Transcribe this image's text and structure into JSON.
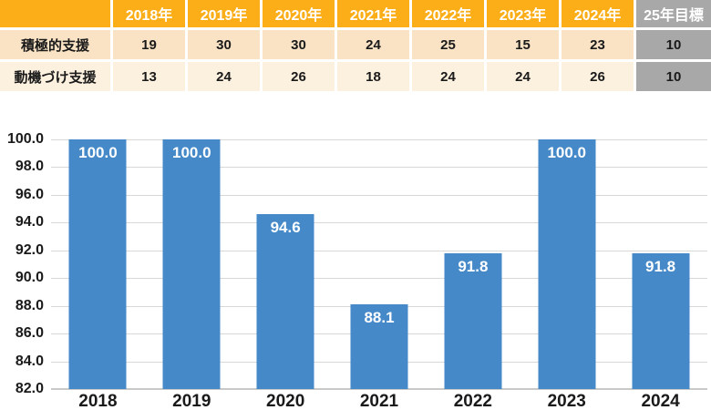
{
  "table": {
    "corner_label": "",
    "year_headers": [
      "2018年",
      "2019年",
      "2020年",
      "2021年",
      "2022年",
      "2023年",
      "2024年"
    ],
    "target_header": "25年目標",
    "rows": [
      {
        "label": "積極的支援",
        "values": [
          "19",
          "30",
          "30",
          "24",
          "25",
          "15",
          "23"
        ],
        "target": "10"
      },
      {
        "label": "動機づけ支援",
        "values": [
          "13",
          "24",
          "26",
          "18",
          "24",
          "24",
          "26"
        ],
        "target": "10"
      }
    ]
  },
  "chart_data": {
    "type": "bar",
    "categories": [
      "2018",
      "2019",
      "2020",
      "2021",
      "2022",
      "2023",
      "2024"
    ],
    "values": [
      100.0,
      100.0,
      94.6,
      88.1,
      91.8,
      100.0,
      91.8
    ],
    "data_labels": [
      "100.0",
      "100.0",
      "94.6",
      "88.1",
      "91.8",
      "100.0",
      "91.8"
    ],
    "title": "",
    "xlabel": "",
    "ylabel": "",
    "ylim": [
      82.0,
      100.0
    ],
    "ytick_step": 2.0,
    "yticks": [
      "100.0",
      "98.0",
      "96.0",
      "94.0",
      "92.0",
      "90.0",
      "88.0",
      "86.0",
      "84.0",
      "82.0"
    ],
    "grid": true,
    "legend": "none",
    "bar_color": "#4589C8",
    "bar_label_color": "#ffffff"
  },
  "colors": {
    "header_bg": "#FBAE17",
    "header_text": "#ffffff",
    "row_a_bg": "#FAE3C5",
    "row_b_bg": "#FCF0DE",
    "target_col_bg": "#A8A8A8",
    "cell_text": "#1a1a1a",
    "grid_line": "#D8D8D8"
  }
}
